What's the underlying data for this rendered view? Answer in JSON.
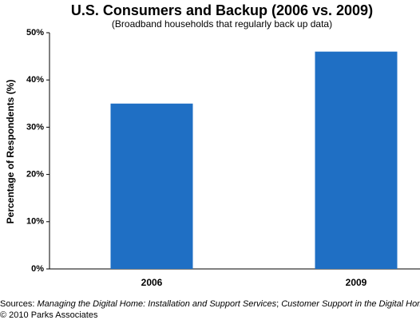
{
  "chart_data": {
    "type": "bar",
    "title": "U.S. Consumers and Backup (2006 vs. 2009)",
    "subtitle": "(Broadband households that regularly back up data)",
    "y_label": "Percentage of Respondents (%)",
    "categories": [
      "2006",
      "2009"
    ],
    "values": [
      35,
      46
    ],
    "color": "#1f6fc4",
    "ylim": [
      0,
      50
    ],
    "yticks": [
      {
        "value": 0,
        "label": "0%"
      },
      {
        "value": 10,
        "label": "10%"
      },
      {
        "value": 20,
        "label": "20%"
      },
      {
        "value": 30,
        "label": "30%"
      },
      {
        "value": 40,
        "label": "40%"
      },
      {
        "value": 50,
        "label": "50%"
      }
    ],
    "grid": false,
    "source": [
      "Sources: ",
      "Managing the Digital Home: Installation and Support Services",
      "; ",
      "Customer Support in the Digital Home"
    ],
    "copyright": "© 2010 Parks Associates"
  }
}
